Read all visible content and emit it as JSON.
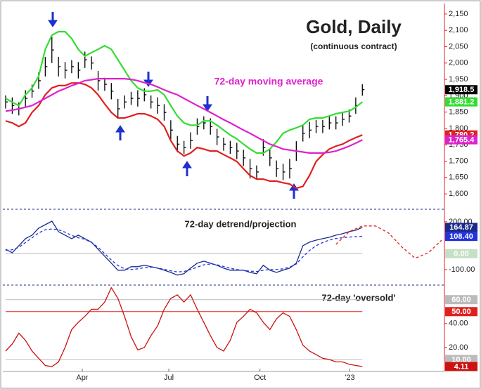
{
  "chart_data": [
    {
      "type": "ohlc",
      "title": "Gold, Daily",
      "subtitle": "(continuous contract)",
      "annotation": "72-day moving average",
      "x": [
        0,
        1,
        2,
        3,
        4,
        5,
        6,
        7,
        8,
        9,
        10,
        11,
        12,
        13,
        14,
        15,
        16,
        17,
        18,
        19,
        20,
        21,
        22,
        23,
        24,
        25,
        26,
        27,
        28,
        29,
        30,
        31,
        32,
        33,
        34,
        35,
        36,
        37,
        38,
        39,
        40,
        41,
        42,
        43,
        44,
        45,
        46,
        47,
        48,
        49,
        50,
        51,
        52,
        53,
        54
      ],
      "high": [
        1901,
        1895,
        1880,
        1917,
        1934,
        1971,
        2019,
        2080,
        2019,
        2003,
        2009,
        2003,
        2035,
        2020,
        1976,
        1955,
        1939,
        1890,
        1901,
        1912,
        1917,
        1923,
        1901,
        1895,
        1874,
        1825,
        1777,
        1762,
        1788,
        1831,
        1837,
        1831,
        1799,
        1772,
        1762,
        1756,
        1735,
        1707,
        1687,
        1767,
        1735,
        1702,
        1692,
        1707,
        1761,
        1810,
        1820,
        1826,
        1826,
        1837,
        1837,
        1848,
        1858,
        1895,
        1935
      ],
      "low": [
        1861,
        1845,
        1840,
        1867,
        1894,
        1921,
        1959,
        2000,
        1959,
        1953,
        1969,
        1953,
        1985,
        1980,
        1916,
        1915,
        1889,
        1830,
        1861,
        1872,
        1867,
        1883,
        1861,
        1845,
        1824,
        1765,
        1727,
        1722,
        1738,
        1781,
        1797,
        1781,
        1749,
        1732,
        1722,
        1706,
        1685,
        1647,
        1647,
        1717,
        1685,
        1652,
        1642,
        1647,
        1701,
        1760,
        1770,
        1786,
        1786,
        1797,
        1797,
        1808,
        1818,
        1845,
        1900
      ],
      "close": [
        1881,
        1870,
        1860,
        1892,
        1914,
        1946,
        1989,
        2040,
        1989,
        1978,
        1989,
        1978,
        2010,
        2000,
        1946,
        1935,
        1914,
        1860,
        1881,
        1892,
        1892,
        1903,
        1881,
        1870,
        1849,
        1795,
        1752,
        1742,
        1763,
        1806,
        1817,
        1806,
        1774,
        1752,
        1742,
        1731,
        1710,
        1677,
        1667,
        1742,
        1710,
        1677,
        1667,
        1677,
        1731,
        1785,
        1795,
        1806,
        1806,
        1817,
        1817,
        1828,
        1838,
        1870,
        1918.5
      ],
      "close_label": "1,918.5",
      "close_color": "#000000",
      "series": [
        {
          "color": "#e02020",
          "last_label": "1,780.2",
          "values": [
            1823,
            1817,
            1806,
            1817,
            1849,
            1870,
            1903,
            1924,
            1931,
            1931,
            1939,
            1939,
            1935,
            1924,
            1903,
            1875,
            1849,
            1832,
            1832,
            1838,
            1845,
            1845,
            1838,
            1828,
            1806,
            1763,
            1731,
            1716,
            1725,
            1742,
            1737,
            1731,
            1731,
            1720,
            1710,
            1699,
            1677,
            1656,
            1645,
            1645,
            1639,
            1639,
            1634,
            1630,
            1617,
            1623,
            1656,
            1699,
            1720,
            1737,
            1746,
            1752,
            1763,
            1772,
            1780.2
          ]
        },
        {
          "color": "#33dd33",
          "last_label": "1,881.2",
          "values": [
            1892,
            1880,
            1870,
            1903,
            1924,
            1960,
            2042,
            2085,
            2096,
            2096,
            2075,
            2042,
            2021,
            2032,
            2042,
            2053,
            2042,
            2010,
            1978,
            1946,
            1924,
            1914,
            1914,
            1918,
            1903,
            1870,
            1838,
            1817,
            1810,
            1810,
            1823,
            1823,
            1810,
            1795,
            1780,
            1768,
            1752,
            1737,
            1725,
            1725,
            1737,
            1759,
            1785,
            1795,
            1802,
            1810,
            1828,
            1832,
            1832,
            1838,
            1845,
            1849,
            1853,
            1865,
            1881.2
          ]
        },
        {
          "color": "#dd22cc",
          "last_label": "1,765.4",
          "values": [
            1853,
            1856,
            1860,
            1865,
            1870,
            1881,
            1892,
            1903,
            1914,
            1922,
            1931,
            1938,
            1946,
            1949,
            1952,
            1952,
            1952,
            1952,
            1952,
            1950,
            1946,
            1940,
            1935,
            1927,
            1918,
            1910,
            1903,
            1892,
            1881,
            1870,
            1860,
            1849,
            1838,
            1827,
            1817,
            1806,
            1795,
            1785,
            1774,
            1763,
            1752,
            1745,
            1737,
            1734,
            1731,
            1728,
            1725,
            1725,
            1725,
            1727,
            1731,
            1738,
            1746,
            1755,
            1765.4
          ]
        }
      ],
      "xlim": [
        0,
        66
      ],
      "ylim": [
        1553,
        2182
      ],
      "yticks": [
        {
          "value": 2150,
          "label": "2,150"
        },
        {
          "value": 2100,
          "label": "2,100"
        },
        {
          "value": 2050,
          "label": "2,050"
        },
        {
          "value": 2000,
          "label": "2,000"
        },
        {
          "value": 1950,
          "label": "1,950"
        },
        {
          "value": 1900,
          "label": "1,900"
        },
        {
          "value": 1850,
          "label": "1,850"
        },
        {
          "value": 1800,
          "label": "1,800"
        },
        {
          "value": 1750,
          "label": "1,750"
        },
        {
          "value": 1700,
          "label": "1,700"
        },
        {
          "value": 1650,
          "label": "1,650"
        },
        {
          "value": 1600,
          "label": "1,600"
        }
      ]
    },
    {
      "type": "line",
      "title": "72-day detrend/projection",
      "x": [
        0,
        1,
        2,
        3,
        4,
        5,
        6,
        7,
        8,
        9,
        10,
        11,
        12,
        13,
        14,
        15,
        16,
        17,
        18,
        19,
        20,
        21,
        22,
        23,
        24,
        25,
        26,
        27,
        28,
        29,
        30,
        31,
        32,
        33,
        34,
        35,
        36,
        37,
        38,
        39,
        40,
        41,
        42,
        43,
        44,
        45,
        46,
        47,
        48,
        49,
        50,
        51,
        52,
        53,
        54
      ],
      "series": [
        {
          "color": "#1a2a8a",
          "last_label": "164.87",
          "values": [
            28,
            6,
            50,
            94,
            116,
            160,
            182,
            204,
            138,
            116,
            94,
            116,
            94,
            72,
            28,
            -16,
            -60,
            -104,
            -104,
            -82,
            -82,
            -73,
            -82,
            -91,
            -104,
            -118,
            -135,
            -126,
            -91,
            -60,
            -47,
            -60,
            -73,
            -91,
            -104,
            -104,
            -104,
            -118,
            -126,
            -73,
            -104,
            -118,
            -104,
            -91,
            -60,
            50,
            72,
            85,
            94,
            103,
            116,
            125,
            138,
            147,
            164.87
          ]
        },
        {
          "color": "#2233dd",
          "dashed": true,
          "last_label": "108.40",
          "values": [
            20,
            25,
            40,
            70,
            100,
            130,
            150,
            155,
            150,
            135,
            115,
            100,
            90,
            70,
            40,
            0,
            -40,
            -75,
            -95,
            -100,
            -95,
            -88,
            -85,
            -90,
            -98,
            -108,
            -115,
            -112,
            -100,
            -85,
            -70,
            -65,
            -70,
            -80,
            -92,
            -100,
            -105,
            -110,
            -112,
            -105,
            -100,
            -100,
            -95,
            -85,
            -65,
            -20,
            20,
            50,
            70,
            85,
            95,
            100,
            104,
            106,
            108.4
          ]
        }
      ],
      "projection": {
        "color": "#e02020",
        "x": [
          50,
          52,
          54,
          56,
          58,
          60,
          62,
          64,
          66
        ],
        "values": [
          58,
          138,
          174,
          174,
          129,
          41,
          -29,
          6,
          85
        ]
      },
      "levels": [
        {
          "value": 0,
          "label": "0.00",
          "color": "#c5e1c5",
          "line": "#bbbbbb"
        }
      ],
      "xlim": [
        0,
        66
      ],
      "ylim": [
        -193,
        270
      ],
      "yticks": [
        {
          "value": 200,
          "label": "200.00"
        },
        {
          "value": -100,
          "label": "-100.00"
        }
      ]
    },
    {
      "type": "line",
      "title": "72-day 'oversold'",
      "x": [
        0,
        1,
        2,
        3,
        4,
        5,
        6,
        7,
        8,
        9,
        10,
        11,
        12,
        13,
        14,
        15,
        16,
        17,
        18,
        19,
        20,
        21,
        22,
        23,
        24,
        25,
        26,
        27,
        28,
        29,
        30,
        31,
        32,
        33,
        34,
        35,
        36,
        37,
        38,
        39,
        40,
        41,
        42,
        43,
        44,
        45,
        46,
        47,
        48,
        49,
        50,
        51,
        52,
        53,
        54
      ],
      "series": [
        {
          "color": "#cc1111",
          "last_label": "4.11",
          "values": [
            17,
            23,
            32,
            26,
            17,
            11,
            5,
            4,
            8,
            20,
            35,
            41,
            46,
            52,
            52,
            58,
            70,
            61,
            46,
            29,
            18,
            20,
            30,
            38,
            52,
            61,
            64,
            58,
            64,
            52,
            41,
            30,
            20,
            17,
            26,
            41,
            46,
            52,
            49,
            41,
            35,
            44,
            49,
            46,
            35,
            22,
            17,
            14,
            11,
            10,
            8,
            8,
            6,
            5,
            4.11
          ]
        }
      ],
      "levels": [
        {
          "value": 60,
          "label": "60.00",
          "color": "#bbbbbb",
          "line": "#bbbbbb"
        },
        {
          "value": 50,
          "label": "50.00",
          "color": "#e02020",
          "line": "#e02020"
        },
        {
          "value": 10,
          "label": "10.00",
          "color": "#bbbbbb",
          "line": "#bbbbbb"
        }
      ],
      "xlim": [
        0,
        66
      ],
      "ylim": [
        0,
        71
      ],
      "yticks": [
        {
          "value": 40,
          "label": "40.00"
        },
        {
          "value": 20,
          "label": "20.00"
        }
      ],
      "xticks": [
        {
          "value": 11.6,
          "label": "Apr"
        },
        {
          "value": 24.7,
          "label": "Jul"
        },
        {
          "value": 38.5,
          "label": "Oct"
        },
        {
          "value": 52.1,
          "label": "'23"
        }
      ]
    }
  ]
}
